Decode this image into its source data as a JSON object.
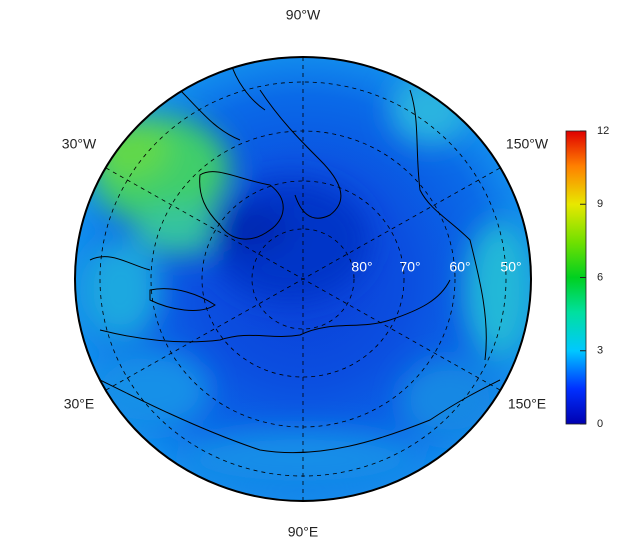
{
  "map": {
    "longitude_labels": {
      "top": "90°W",
      "upper_left": "30°W",
      "upper_right": "150°W",
      "lower_left": "30°E",
      "lower_right": "150°E",
      "bottom": "90°E"
    },
    "latitude_labels": [
      "80°",
      "70°",
      "60°",
      "50°"
    ],
    "colorbar": {
      "min": 0,
      "max": 12,
      "ticks": [
        0,
        3,
        6,
        9,
        12
      ]
    }
  }
}
